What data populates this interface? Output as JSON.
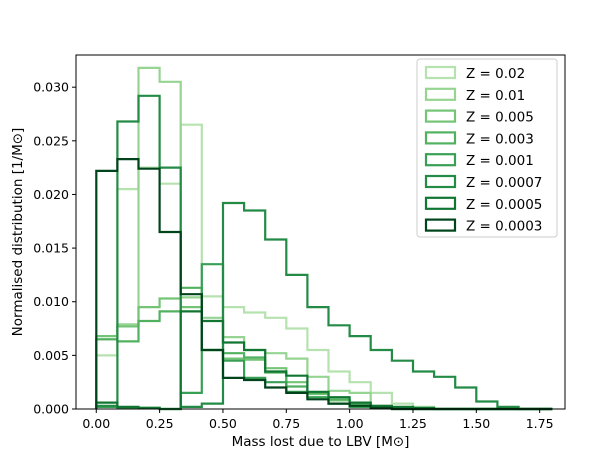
{
  "chart_data": {
    "type": "step-histogram",
    "title": "",
    "xlabel": "Mass lost due to LBV [M⊙]",
    "ylabel": "Normalised distribution [1/M⊙]",
    "xlim": [
      -0.08,
      1.85
    ],
    "ylim": [
      0,
      0.033
    ],
    "xticks": [
      0.0,
      0.25,
      0.5,
      0.75,
      1.0,
      1.25,
      1.5,
      1.75
    ],
    "xtick_labels": [
      "0.00",
      "0.25",
      "0.50",
      "0.75",
      "1.00",
      "1.25",
      "1.50",
      "1.75"
    ],
    "yticks": [
      0.0,
      0.005,
      0.01,
      0.015,
      0.02,
      0.025,
      0.03
    ],
    "ytick_labels": [
      "0.000",
      "0.005",
      "0.010",
      "0.015",
      "0.020",
      "0.025",
      "0.030"
    ],
    "grid": false,
    "legend_position": "top-right",
    "bin_edges": [
      0.0,
      0.0833,
      0.1667,
      0.25,
      0.3333,
      0.4167,
      0.5,
      0.5833,
      0.6667,
      0.75,
      0.8333,
      0.9167,
      1.0,
      1.0833,
      1.1667,
      1.25,
      1.3333,
      1.4167,
      1.5,
      1.5833,
      1.6667,
      1.75,
      1.8
    ],
    "series": [
      {
        "name": "Z = 0.02",
        "color": "#b5e2ae",
        "values": [
          0.005,
          0.0205,
          0.0225,
          0.021,
          0.0265,
          0.0105,
          0.0095,
          0.009,
          0.0085,
          0.0075,
          0.0055,
          0.0035,
          0.0025,
          0.0015,
          0.0005,
          0.0002,
          0.0,
          0.0,
          0.0,
          0.0,
          0.0,
          0.0
        ]
      },
      {
        "name": "Z = 0.01",
        "color": "#96d492",
        "values": [
          0.0065,
          0.0079,
          0.0318,
          0.0305,
          0.0104,
          0.0085,
          0.0067,
          0.0055,
          0.0052,
          0.0047,
          0.003,
          0.0017,
          0.0015,
          0.0003,
          0.0001,
          0.0,
          0.0,
          0.0,
          0.0,
          0.0,
          0.0,
          0.0
        ]
      },
      {
        "name": "Z = 0.005",
        "color": "#74c476",
        "values": [
          0.0068,
          0.0077,
          0.0095,
          0.0103,
          0.0095,
          0.0055,
          0.0047,
          0.0046,
          0.0038,
          0.0025,
          0.0014,
          0.0008,
          0.0004,
          0.0002,
          0.0001,
          0.0,
          0.0,
          0.0,
          0.0,
          0.0,
          0.0,
          0.0
        ]
      },
      {
        "name": "Z = 0.003",
        "color": "#52b15f",
        "values": [
          0.0065,
          0.0063,
          0.0082,
          0.0091,
          0.0113,
          0.0055,
          0.0052,
          0.0048,
          0.0034,
          0.0021,
          0.0015,
          0.0009,
          0.0004,
          0.0002,
          0.0001,
          0.0,
          0.0,
          0.0,
          0.0,
          0.0,
          0.0,
          0.0
        ]
      },
      {
        "name": "Z = 0.001",
        "color": "#38a055",
        "values": [
          0.0002,
          0.0001,
          0.0001,
          0.0,
          0.0015,
          0.0135,
          0.0045,
          0.0029,
          0.0025,
          0.0016,
          0.0011,
          0.0005,
          0.0002,
          0.0001,
          0.0,
          0.0,
          0.0,
          0.0,
          0.0,
          0.0,
          0.0,
          0.0
        ]
      },
      {
        "name": "Z = 0.0007",
        "color": "#238b45",
        "values": [
          0.0003,
          0.0268,
          0.0292,
          0.0225,
          0.0002,
          0.0005,
          0.0192,
          0.0185,
          0.0158,
          0.0125,
          0.0095,
          0.0078,
          0.0068,
          0.0055,
          0.0045,
          0.0035,
          0.003,
          0.002,
          0.0007,
          0.0002,
          0.0,
          0.0
        ]
      },
      {
        "name": "Z = 0.0005",
        "color": "#117632",
        "values": [
          0.0006,
          0.0002,
          0.0001,
          0.0,
          0.0091,
          0.0082,
          0.0062,
          0.0055,
          0.0035,
          0.0031,
          0.0016,
          0.0011,
          0.0006,
          0.0003,
          0.0002,
          0.0001,
          0.0,
          0.0,
          0.0,
          0.0,
          0.0,
          0.0
        ]
      },
      {
        "name": "Z = 0.0003",
        "color": "#00441b",
        "values": [
          0.0222,
          0.0233,
          0.0224,
          0.0165,
          0.0107,
          0.0055,
          0.0029,
          0.0027,
          0.002,
          0.0015,
          0.0009,
          0.0005,
          0.0003,
          0.0001,
          0.0,
          0.0,
          0.0,
          0.0,
          0.0,
          0.0,
          0.0,
          0.0
        ]
      }
    ]
  }
}
